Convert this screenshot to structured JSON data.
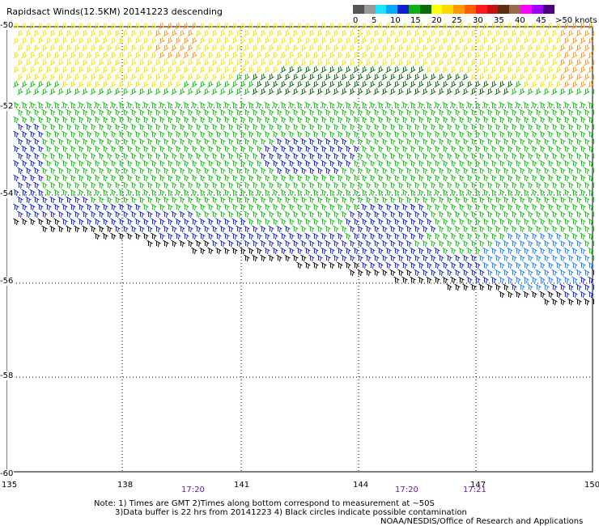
{
  "title": "Rapidsact Winds(12.5KM) 20141223 descending",
  "legend": {
    "colors": [
      "#555555",
      "#999999",
      "#1be4ff",
      "#00aaff",
      "#1020d0",
      "#10b010",
      "#0b6a0b",
      "#ffff00",
      "#ffd700",
      "#ff9900",
      "#ff5f00",
      "#ff1a1a",
      "#c81010",
      "#5a2d14",
      "#9a6a4a",
      "#ff00ff",
      "#9a00ff",
      "#4b0082"
    ],
    "labels": [
      "0",
      "5",
      "10",
      "15",
      "20",
      "25",
      "30",
      "35",
      "40",
      "45",
      ">50 knots"
    ]
  },
  "lat_labels": [
    "-50",
    "-52",
    "-54",
    "-56",
    "-58",
    "-60"
  ],
  "lon_labels": [
    "135",
    "138",
    "141",
    "144",
    "147",
    "150"
  ],
  "time_labels": [
    "17:20",
    "17:20",
    "17:21"
  ],
  "notes": [
    "Note: 1) Times are GMT 2)Times along bottom correspond to measurement at ~50S",
    "3)Data buffer is 22 hrs from 20141223 4) Black circles indicate possible contamination",
    "NOAA/NESDIS/Office of Research and Applications"
  ],
  "barb_colors": {
    "yellow": "#f2e600",
    "orange": "#ff9a1a",
    "darkgreen": "#0b6a0b",
    "green": "#10c010",
    "blue": "#1020d0",
    "lightblue": "#1a7fff",
    "black": "#000000"
  }
}
